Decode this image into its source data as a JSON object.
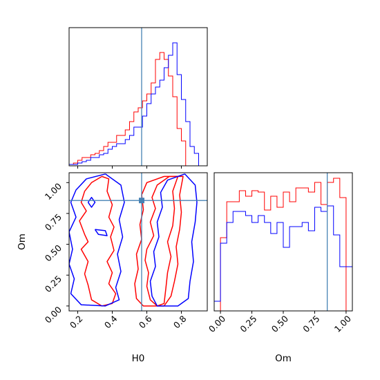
{
  "chart_data": [
    {
      "type": "histogram",
      "panel": "H0 marginal",
      "x_param": "H0",
      "xlim": [
        0.15,
        0.95
      ],
      "bin_edges": [
        0.15,
        0.175,
        0.2,
        0.225,
        0.25,
        0.275,
        0.3,
        0.325,
        0.35,
        0.375,
        0.4,
        0.425,
        0.45,
        0.475,
        0.5,
        0.525,
        0.55,
        0.575,
        0.6,
        0.625,
        0.65,
        0.675,
        0.7,
        0.725,
        0.75,
        0.775,
        0.8,
        0.825,
        0.85,
        0.875,
        0.9,
        0.925,
        0.95
      ],
      "series": [
        {
          "color": "#ff0000",
          "counts": [
            0.01,
            0.02,
            0.04,
            0.06,
            0.06,
            0.08,
            0.09,
            0.11,
            0.14,
            0.17,
            0.17,
            0.22,
            0.22,
            0.26,
            0.32,
            0.39,
            0.42,
            0.47,
            0.52,
            0.6,
            0.77,
            0.82,
            0.77,
            0.65,
            0.5,
            0.27,
            0.18,
            0.0,
            0.0,
            0.0,
            0.0,
            0.0
          ]
        },
        {
          "color": "#0000ff",
          "counts": [
            0.01,
            0.01,
            0.02,
            0.03,
            0.04,
            0.06,
            0.06,
            0.08,
            0.09,
            0.12,
            0.14,
            0.16,
            0.16,
            0.19,
            0.22,
            0.28,
            0.28,
            0.36,
            0.45,
            0.52,
            0.57,
            0.62,
            0.71,
            0.8,
            0.89,
            0.66,
            0.48,
            0.32,
            0.14,
            0.09,
            0.0,
            0.0
          ]
        }
      ],
      "truth_x": 0.57
    },
    {
      "type": "contour",
      "panel": "H0 vs Om",
      "xlabel": "H0",
      "ylabel": "Om",
      "xlim": [
        0.15,
        0.95
      ],
      "ylim": [
        -0.04,
        1.08
      ],
      "xticks": [
        "0.2",
        "0.4",
        "0.6",
        "0.8"
      ],
      "yticks": [
        "0.00",
        "0.25",
        "0.50",
        "0.75",
        "1.00"
      ],
      "truth_x": 0.57,
      "truth_y": 0.855,
      "contours": [
        {
          "color": "#ff0000",
          "points": [
            [
              0.34,
              1.05
            ],
            [
              0.28,
              1.0
            ],
            [
              0.24,
              0.93
            ],
            [
              0.22,
              0.84
            ],
            [
              0.25,
              0.77
            ],
            [
              0.21,
              0.69
            ],
            [
              0.24,
              0.58
            ],
            [
              0.26,
              0.52
            ],
            [
              0.22,
              0.46
            ],
            [
              0.26,
              0.36
            ],
            [
              0.24,
              0.26
            ],
            [
              0.26,
              0.17
            ],
            [
              0.28,
              0.05
            ],
            [
              0.34,
              0.0
            ],
            [
              0.4,
              0.02
            ],
            [
              0.42,
              0.1
            ],
            [
              0.38,
              0.18
            ],
            [
              0.4,
              0.27
            ],
            [
              0.37,
              0.36
            ],
            [
              0.41,
              0.45
            ],
            [
              0.39,
              0.56
            ],
            [
              0.41,
              0.64
            ],
            [
              0.38,
              0.72
            ],
            [
              0.4,
              0.82
            ],
            [
              0.37,
              0.93
            ],
            [
              0.38,
              1.03
            ],
            [
              0.34,
              1.05
            ]
          ]
        },
        {
          "color": "#ff0000",
          "points": [
            [
              0.73,
              1.05
            ],
            [
              0.66,
              0.98
            ],
            [
              0.63,
              0.88
            ],
            [
              0.65,
              0.79
            ],
            [
              0.62,
              0.68
            ],
            [
              0.64,
              0.57
            ],
            [
              0.6,
              0.46
            ],
            [
              0.59,
              0.37
            ],
            [
              0.61,
              0.27
            ],
            [
              0.6,
              0.16
            ],
            [
              0.62,
              0.05
            ],
            [
              0.66,
              0.0
            ],
            [
              0.7,
              0.02
            ],
            [
              0.71,
              0.14
            ],
            [
              0.72,
              0.27
            ],
            [
              0.74,
              0.4
            ],
            [
              0.72,
              0.52
            ],
            [
              0.75,
              0.65
            ],
            [
              0.76,
              0.79
            ],
            [
              0.75,
              0.93
            ],
            [
              0.78,
              1.05
            ],
            [
              0.73,
              1.05
            ]
          ]
        },
        {
          "color": "#ff0000",
          "points": [
            [
              0.7,
              1.05
            ],
            [
              0.6,
              1.0
            ],
            [
              0.57,
              0.9
            ],
            [
              0.58,
              0.78
            ],
            [
              0.56,
              0.66
            ],
            [
              0.57,
              0.54
            ],
            [
              0.54,
              0.42
            ],
            [
              0.55,
              0.3
            ],
            [
              0.53,
              0.18
            ],
            [
              0.54,
              0.06
            ],
            [
              0.58,
              0.0
            ],
            [
              0.7,
              0.0
            ],
            [
              0.74,
              0.08
            ],
            [
              0.76,
              0.2
            ],
            [
              0.78,
              0.34
            ],
            [
              0.77,
              0.48
            ],
            [
              0.79,
              0.62
            ],
            [
              0.8,
              0.76
            ],
            [
              0.79,
              0.9
            ],
            [
              0.81,
              1.05
            ],
            [
              0.7,
              1.05
            ]
          ]
        },
        {
          "color": "#0000ff",
          "points": [
            [
              0.36,
              1.07
            ],
            [
              0.25,
              1.03
            ],
            [
              0.19,
              0.94
            ],
            [
              0.16,
              0.84
            ],
            [
              0.19,
              0.72
            ],
            [
              0.15,
              0.6
            ],
            [
              0.17,
              0.46
            ],
            [
              0.15,
              0.34
            ],
            [
              0.18,
              0.22
            ],
            [
              0.16,
              0.1
            ],
            [
              0.22,
              0.01
            ],
            [
              0.36,
              0.0
            ],
            [
              0.44,
              0.05
            ],
            [
              0.42,
              0.15
            ],
            [
              0.45,
              0.28
            ],
            [
              0.43,
              0.42
            ],
            [
              0.46,
              0.56
            ],
            [
              0.44,
              0.7
            ],
            [
              0.47,
              0.84
            ],
            [
              0.45,
              0.98
            ],
            [
              0.36,
              1.07
            ]
          ]
        },
        {
          "color": "#0000ff",
          "points": [
            [
              0.82,
              1.07
            ],
            [
              0.72,
              1.02
            ],
            [
              0.68,
              0.92
            ],
            [
              0.69,
              0.8
            ],
            [
              0.66,
              0.68
            ],
            [
              0.67,
              0.56
            ],
            [
              0.64,
              0.44
            ],
            [
              0.65,
              0.32
            ],
            [
              0.62,
              0.2
            ],
            [
              0.63,
              0.08
            ],
            [
              0.66,
              0.0
            ],
            [
              0.78,
              0.0
            ],
            [
              0.84,
              0.06
            ],
            [
              0.85,
              0.2
            ],
            [
              0.87,
              0.36
            ],
            [
              0.86,
              0.52
            ],
            [
              0.88,
              0.68
            ],
            [
              0.89,
              0.84
            ],
            [
              0.88,
              0.98
            ],
            [
              0.82,
              1.07
            ]
          ]
        },
        {
          "color": "#0000ff",
          "points": [
            [
              0.26,
              0.84
            ],
            [
              0.28,
              0.8
            ],
            [
              0.3,
              0.84
            ],
            [
              0.28,
              0.88
            ],
            [
              0.26,
              0.84
            ]
          ]
        },
        {
          "color": "#0000ff",
          "points": [
            [
              0.3,
              0.62
            ],
            [
              0.36,
              0.61
            ],
            [
              0.37,
              0.57
            ],
            [
              0.32,
              0.58
            ],
            [
              0.3,
              0.62
            ]
          ]
        }
      ]
    },
    {
      "type": "histogram",
      "panel": "Om marginal",
      "xlabel": "Om",
      "xlim": [
        -0.05,
        1.05
      ],
      "xticks": [
        "0.00",
        "0.25",
        "0.50",
        "0.75",
        "1.00"
      ],
      "bin_edges": [
        -0.05,
        0.0,
        0.05,
        0.1,
        0.15,
        0.2,
        0.25,
        0.3,
        0.35,
        0.4,
        0.45,
        0.5,
        0.55,
        0.6,
        0.65,
        0.7,
        0.75,
        0.8,
        0.85,
        0.9,
        0.95,
        1.0,
        1.05
      ],
      "series": [
        {
          "color": "#ff0000",
          "counts": [
            0.0,
            0.53,
            0.79,
            0.79,
            0.87,
            0.83,
            0.87,
            0.86,
            0.73,
            0.83,
            0.75,
            0.86,
            0.79,
            0.89,
            0.89,
            0.86,
            0.93,
            0.77,
            0.93,
            0.96,
            0.82,
            0.0
          ]
        },
        {
          "color": "#0000ff",
          "counts": [
            0.07,
            0.49,
            0.64,
            0.72,
            0.72,
            0.69,
            0.64,
            0.69,
            0.64,
            0.56,
            0.64,
            0.46,
            0.61,
            0.61,
            0.64,
            0.58,
            0.75,
            0.72,
            0.76,
            0.55,
            0.32,
            0.32
          ]
        }
      ],
      "truth_x": 0.85
    }
  ]
}
